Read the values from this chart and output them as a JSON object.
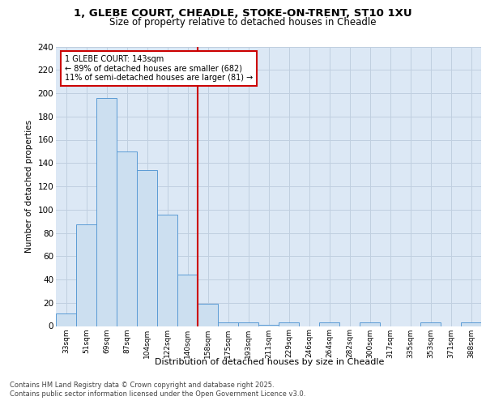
{
  "title_line1": "1, GLEBE COURT, CHEADLE, STOKE-ON-TRENT, ST10 1XU",
  "title_line2": "Size of property relative to detached houses in Cheadle",
  "xlabel": "Distribution of detached houses by size in Cheadle",
  "ylabel": "Number of detached properties",
  "categories": [
    "33sqm",
    "51sqm",
    "69sqm",
    "87sqm",
    "104sqm",
    "122sqm",
    "140sqm",
    "158sqm",
    "175sqm",
    "193sqm",
    "211sqm",
    "229sqm",
    "246sqm",
    "264sqm",
    "282sqm",
    "300sqm",
    "317sqm",
    "335sqm",
    "353sqm",
    "371sqm",
    "388sqm"
  ],
  "values": [
    11,
    87,
    196,
    150,
    134,
    96,
    44,
    19,
    3,
    3,
    1,
    3,
    0,
    3,
    0,
    3,
    0,
    0,
    3,
    0,
    3
  ],
  "bar_color": "#ccdff0",
  "bar_edge_color": "#5b9bd5",
  "annotation_title": "1 GLEBE COURT: 143sqm",
  "annotation_line1": "← 89% of detached houses are smaller (682)",
  "annotation_line2": "11% of semi-detached houses are larger (81) →",
  "vline_color": "#cc0000",
  "vline_bin_index": 6,
  "annotation_box_color": "#ffffff",
  "annotation_box_edge": "#cc0000",
  "grid_color": "#c0cfe0",
  "background_color": "#dce8f5",
  "footer_line1": "Contains HM Land Registry data © Crown copyright and database right 2025.",
  "footer_line2": "Contains public sector information licensed under the Open Government Licence v3.0.",
  "ylim": [
    0,
    240
  ],
  "yticks": [
    0,
    20,
    40,
    60,
    80,
    100,
    120,
    140,
    160,
    180,
    200,
    220,
    240
  ]
}
